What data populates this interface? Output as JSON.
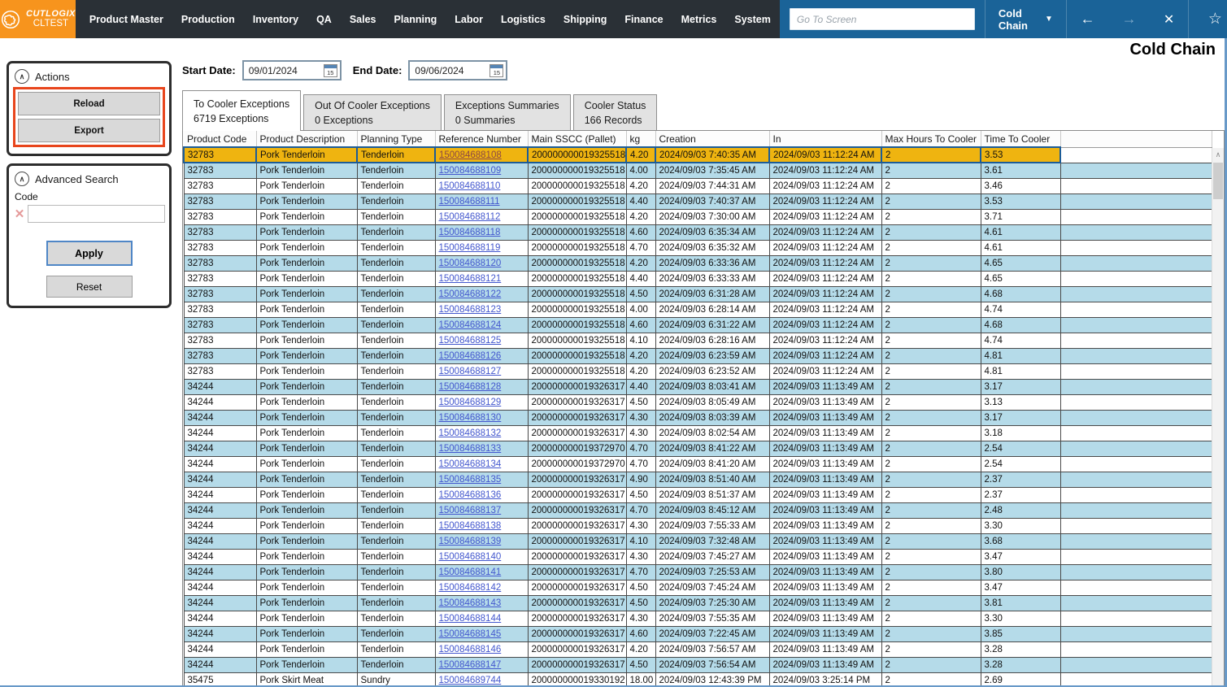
{
  "app": {
    "brand": "CUTLOGIX",
    "environment": "CLTEST",
    "nav_items": [
      "Product Master",
      "Production",
      "Inventory",
      "QA",
      "Sales",
      "Planning",
      "Labor",
      "Logistics",
      "Shipping",
      "Finance",
      "Metrics",
      "System"
    ],
    "goto_placeholder": "Go To Screen",
    "screen_selector_value": "Cold Chain",
    "back_arrow": "←",
    "forward_arrow": "→",
    "close_glyph": "✕",
    "star_glyph": "☆"
  },
  "page": {
    "title": "Cold Chain"
  },
  "sidebar": {
    "actions": {
      "title": "Actions",
      "reload_label": "Reload",
      "export_label": "Export"
    },
    "advanced_search": {
      "title": "Advanced Search",
      "code_label": "Code",
      "code_value": "",
      "apply_label": "Apply",
      "reset_label": "Reset"
    }
  },
  "filters": {
    "start_label": "Start Date:",
    "start_value": "09/01/2024",
    "end_label": "End Date:",
    "end_value": "09/06/2024",
    "calendar_day": "15"
  },
  "tabs": [
    {
      "label": "To Cooler Exceptions",
      "count": "6719 Exceptions",
      "active": true
    },
    {
      "label": "Out Of Cooler Exceptions",
      "count": "0 Exceptions",
      "active": false
    },
    {
      "label": "Exceptions Summaries",
      "count": "0 Summaries",
      "active": false
    },
    {
      "label": "Cooler Status",
      "count": "166 Records",
      "active": false
    }
  ],
  "table": {
    "columns": [
      "Product Code",
      "Product Description",
      "Planning Type",
      "Reference Number",
      "Main SSCC (Pallet)",
      "kg",
      "Creation",
      "In",
      "Max Hours To Cooler",
      "Time To Cooler"
    ],
    "column_keys": [
      "product_code",
      "product_description",
      "planning_type",
      "reference_number",
      "main_sscc",
      "kg",
      "creation",
      "in",
      "max_hours_to_cooler",
      "time_to_cooler"
    ],
    "selected_row_index": 0,
    "rows": [
      [
        "32783",
        "Pork Tenderloin",
        "Tenderloin",
        "150084688108",
        "200000000019325518",
        "4.20",
        "2024/09/03 7:40:35 AM",
        "2024/09/03 11:12:24 AM",
        "2",
        "3.53"
      ],
      [
        "32783",
        "Pork Tenderloin",
        "Tenderloin",
        "150084688109",
        "200000000019325518",
        "4.00",
        "2024/09/03 7:35:45 AM",
        "2024/09/03 11:12:24 AM",
        "2",
        "3.61"
      ],
      [
        "32783",
        "Pork Tenderloin",
        "Tenderloin",
        "150084688110",
        "200000000019325518",
        "4.20",
        "2024/09/03 7:44:31 AM",
        "2024/09/03 11:12:24 AM",
        "2",
        "3.46"
      ],
      [
        "32783",
        "Pork Tenderloin",
        "Tenderloin",
        "150084688111",
        "200000000019325518",
        "4.40",
        "2024/09/03 7:40:37 AM",
        "2024/09/03 11:12:24 AM",
        "2",
        "3.53"
      ],
      [
        "32783",
        "Pork Tenderloin",
        "Tenderloin",
        "150084688112",
        "200000000019325518",
        "4.20",
        "2024/09/03 7:30:00 AM",
        "2024/09/03 11:12:24 AM",
        "2",
        "3.71"
      ],
      [
        "32783",
        "Pork Tenderloin",
        "Tenderloin",
        "150084688118",
        "200000000019325518",
        "4.60",
        "2024/09/03 6:35:34 AM",
        "2024/09/03 11:12:24 AM",
        "2",
        "4.61"
      ],
      [
        "32783",
        "Pork Tenderloin",
        "Tenderloin",
        "150084688119",
        "200000000019325518",
        "4.70",
        "2024/09/03 6:35:32 AM",
        "2024/09/03 11:12:24 AM",
        "2",
        "4.61"
      ],
      [
        "32783",
        "Pork Tenderloin",
        "Tenderloin",
        "150084688120",
        "200000000019325518",
        "4.20",
        "2024/09/03 6:33:36 AM",
        "2024/09/03 11:12:24 AM",
        "2",
        "4.65"
      ],
      [
        "32783",
        "Pork Tenderloin",
        "Tenderloin",
        "150084688121",
        "200000000019325518",
        "4.40",
        "2024/09/03 6:33:33 AM",
        "2024/09/03 11:12:24 AM",
        "2",
        "4.65"
      ],
      [
        "32783",
        "Pork Tenderloin",
        "Tenderloin",
        "150084688122",
        "200000000019325518",
        "4.50",
        "2024/09/03 6:31:28 AM",
        "2024/09/03 11:12:24 AM",
        "2",
        "4.68"
      ],
      [
        "32783",
        "Pork Tenderloin",
        "Tenderloin",
        "150084688123",
        "200000000019325518",
        "4.00",
        "2024/09/03 6:28:14 AM",
        "2024/09/03 11:12:24 AM",
        "2",
        "4.74"
      ],
      [
        "32783",
        "Pork Tenderloin",
        "Tenderloin",
        "150084688124",
        "200000000019325518",
        "4.60",
        "2024/09/03 6:31:22 AM",
        "2024/09/03 11:12:24 AM",
        "2",
        "4.68"
      ],
      [
        "32783",
        "Pork Tenderloin",
        "Tenderloin",
        "150084688125",
        "200000000019325518",
        "4.10",
        "2024/09/03 6:28:16 AM",
        "2024/09/03 11:12:24 AM",
        "2",
        "4.74"
      ],
      [
        "32783",
        "Pork Tenderloin",
        "Tenderloin",
        "150084688126",
        "200000000019325518",
        "4.20",
        "2024/09/03 6:23:59 AM",
        "2024/09/03 11:12:24 AM",
        "2",
        "4.81"
      ],
      [
        "32783",
        "Pork Tenderloin",
        "Tenderloin",
        "150084688127",
        "200000000019325518",
        "4.20",
        "2024/09/03 6:23:52 AM",
        "2024/09/03 11:12:24 AM",
        "2",
        "4.81"
      ],
      [
        "34244",
        "Pork Tenderloin",
        "Tenderloin",
        "150084688128",
        "200000000019326317",
        "4.40",
        "2024/09/03 8:03:41 AM",
        "2024/09/03 11:13:49 AM",
        "2",
        "3.17"
      ],
      [
        "34244",
        "Pork Tenderloin",
        "Tenderloin",
        "150084688129",
        "200000000019326317",
        "4.50",
        "2024/09/03 8:05:49 AM",
        "2024/09/03 11:13:49 AM",
        "2",
        "3.13"
      ],
      [
        "34244",
        "Pork Tenderloin",
        "Tenderloin",
        "150084688130",
        "200000000019326317",
        "4.30",
        "2024/09/03 8:03:39 AM",
        "2024/09/03 11:13:49 AM",
        "2",
        "3.17"
      ],
      [
        "34244",
        "Pork Tenderloin",
        "Tenderloin",
        "150084688132",
        "200000000019326317",
        "4.30",
        "2024/09/03 8:02:54 AM",
        "2024/09/03 11:13:49 AM",
        "2",
        "3.18"
      ],
      [
        "34244",
        "Pork Tenderloin",
        "Tenderloin",
        "150084688133",
        "200000000019372970",
        "4.70",
        "2024/09/03 8:41:22 AM",
        "2024/09/03 11:13:49 AM",
        "2",
        "2.54"
      ],
      [
        "34244",
        "Pork Tenderloin",
        "Tenderloin",
        "150084688134",
        "200000000019372970",
        "4.70",
        "2024/09/03 8:41:20 AM",
        "2024/09/03 11:13:49 AM",
        "2",
        "2.54"
      ],
      [
        "34244",
        "Pork Tenderloin",
        "Tenderloin",
        "150084688135",
        "200000000019326317",
        "4.90",
        "2024/09/03 8:51:40 AM",
        "2024/09/03 11:13:49 AM",
        "2",
        "2.37"
      ],
      [
        "34244",
        "Pork Tenderloin",
        "Tenderloin",
        "150084688136",
        "200000000019326317",
        "4.50",
        "2024/09/03 8:51:37 AM",
        "2024/09/03 11:13:49 AM",
        "2",
        "2.37"
      ],
      [
        "34244",
        "Pork Tenderloin",
        "Tenderloin",
        "150084688137",
        "200000000019326317",
        "4.70",
        "2024/09/03 8:45:12 AM",
        "2024/09/03 11:13:49 AM",
        "2",
        "2.48"
      ],
      [
        "34244",
        "Pork Tenderloin",
        "Tenderloin",
        "150084688138",
        "200000000019326317",
        "4.30",
        "2024/09/03 7:55:33 AM",
        "2024/09/03 11:13:49 AM",
        "2",
        "3.30"
      ],
      [
        "34244",
        "Pork Tenderloin",
        "Tenderloin",
        "150084688139",
        "200000000019326317",
        "4.10",
        "2024/09/03 7:32:48 AM",
        "2024/09/03 11:13:49 AM",
        "2",
        "3.68"
      ],
      [
        "34244",
        "Pork Tenderloin",
        "Tenderloin",
        "150084688140",
        "200000000019326317",
        "4.30",
        "2024/09/03 7:45:27 AM",
        "2024/09/03 11:13:49 AM",
        "2",
        "3.47"
      ],
      [
        "34244",
        "Pork Tenderloin",
        "Tenderloin",
        "150084688141",
        "200000000019326317",
        "4.70",
        "2024/09/03 7:25:53 AM",
        "2024/09/03 11:13:49 AM",
        "2",
        "3.80"
      ],
      [
        "34244",
        "Pork Tenderloin",
        "Tenderloin",
        "150084688142",
        "200000000019326317",
        "4.50",
        "2024/09/03 7:45:24 AM",
        "2024/09/03 11:13:49 AM",
        "2",
        "3.47"
      ],
      [
        "34244",
        "Pork Tenderloin",
        "Tenderloin",
        "150084688143",
        "200000000019326317",
        "4.50",
        "2024/09/03 7:25:30 AM",
        "2024/09/03 11:13:49 AM",
        "2",
        "3.81"
      ],
      [
        "34244",
        "Pork Tenderloin",
        "Tenderloin",
        "150084688144",
        "200000000019326317",
        "4.30",
        "2024/09/03 7:55:35 AM",
        "2024/09/03 11:13:49 AM",
        "2",
        "3.30"
      ],
      [
        "34244",
        "Pork Tenderloin",
        "Tenderloin",
        "150084688145",
        "200000000019326317",
        "4.60",
        "2024/09/03 7:22:45 AM",
        "2024/09/03 11:13:49 AM",
        "2",
        "3.85"
      ],
      [
        "34244",
        "Pork Tenderloin",
        "Tenderloin",
        "150084688146",
        "200000000019326317",
        "4.20",
        "2024/09/03 7:56:57 AM",
        "2024/09/03 11:13:49 AM",
        "2",
        "3.28"
      ],
      [
        "34244",
        "Pork Tenderloin",
        "Tenderloin",
        "150084688147",
        "200000000019326317",
        "4.50",
        "2024/09/03 7:56:54 AM",
        "2024/09/03 11:13:49 AM",
        "2",
        "3.28"
      ],
      [
        "35475",
        "Pork Skirt Meat",
        "Sundry",
        "150084689744",
        "200000000019330192",
        "18.00",
        "2024/09/03 12:43:39 PM",
        "2024/09/03 3:25:14 PM",
        "2",
        "2.69"
      ]
    ]
  },
  "colors": {
    "brand_orange": "#f7941d",
    "navbar_dark": "#2a3036",
    "topbar_blue": "#1a6398",
    "highlight_red": "#e8451c",
    "selected_row_yellow": "#efb410",
    "selected_border_blue": "#1c5c98",
    "alt_row_blue": "#b5dbe9",
    "link_blue": "#4357ce",
    "selected_link_maroon": "#8c4646",
    "apply_focus_blue": "#4f86c6"
  }
}
